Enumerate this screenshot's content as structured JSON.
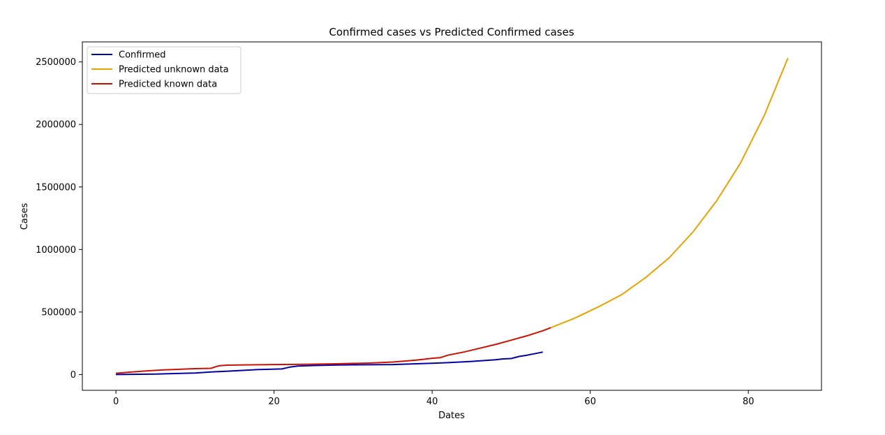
{
  "chart_data": {
    "type": "line",
    "title": "Confirmed cases vs Predicted Confirmed cases",
    "xlabel": "Dates",
    "ylabel": "Cases",
    "xlim": [
      -4.25,
      89.25
    ],
    "ylim": [
      -126000,
      2660000
    ],
    "x_ticks": [
      0,
      20,
      40,
      60,
      80
    ],
    "y_ticks": [
      0,
      500000,
      1000000,
      1500000,
      2000000,
      2500000
    ],
    "grid": false,
    "legend_position": "top-left",
    "series": [
      {
        "name": "Confirmed",
        "color": "#0000aa",
        "x": [
          0,
          5,
          10,
          12,
          15,
          18,
          21,
          22,
          23,
          25,
          28,
          30,
          35,
          40,
          42,
          45,
          48,
          49,
          50,
          51,
          52,
          54
        ],
        "y": [
          0,
          4000,
          12000,
          20000,
          30000,
          40000,
          45000,
          60000,
          68000,
          72000,
          76000,
          78000,
          80000,
          90000,
          95000,
          105000,
          118000,
          125000,
          128000,
          145000,
          155000,
          180000
        ]
      },
      {
        "name": "Predicted unknown data",
        "color": "#e6a300",
        "x": [
          55,
          58,
          61,
          64,
          67,
          70,
          73,
          76,
          79,
          82,
          85
        ],
        "y": [
          375000,
          450000,
          540000,
          640000,
          775000,
          935000,
          1140000,
          1390000,
          1690000,
          2070000,
          2530000
        ]
      },
      {
        "name": "Predicted known data",
        "color": "#cc1100",
        "x": [
          0,
          2,
          4,
          6,
          8,
          10,
          12,
          12.5,
          13,
          14,
          16,
          20,
          24,
          28,
          32,
          35,
          38,
          40,
          41,
          42,
          44,
          46,
          48,
          50,
          52,
          54,
          55
        ],
        "y": [
          10000,
          20000,
          30000,
          37000,
          42000,
          47000,
          50000,
          60000,
          70000,
          75000,
          77000,
          80000,
          82000,
          86000,
          92000,
          100000,
          115000,
          130000,
          135000,
          155000,
          180000,
          210000,
          240000,
          275000,
          310000,
          350000,
          375000
        ]
      }
    ]
  }
}
